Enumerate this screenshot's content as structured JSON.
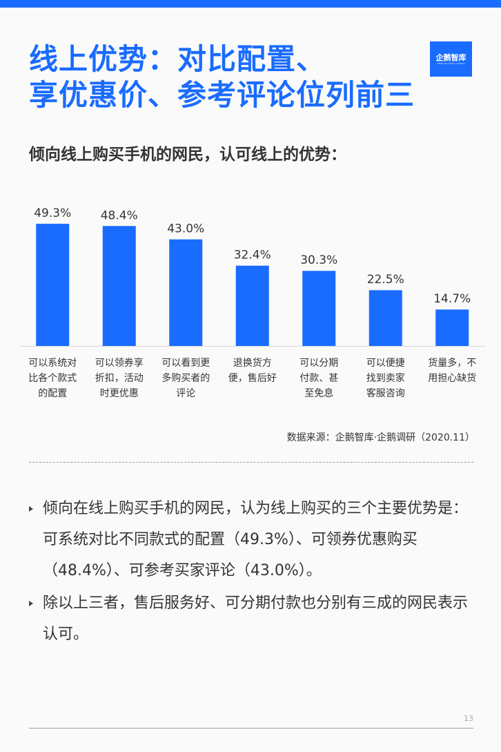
{
  "title_lines": [
    "线上优势：对比配置、",
    "享优惠价、参考评论位列前三"
  ],
  "logo": {
    "name": "企鹅智库",
    "tagline": "PENGUIN INTELLIGENCE"
  },
  "subtitle": "倾向线上购买手机的网民，认可线上的优势：",
  "chart_data": {
    "type": "bar",
    "title": "倾向线上购买手机的网民，认可线上的优势：",
    "categories": [
      [
        "可以系统对",
        "比各个款式",
        "的配置"
      ],
      [
        "可以领券享",
        "折扣，活动",
        "时更优惠"
      ],
      [
        "可以看到更",
        "多购买者的",
        "评论"
      ],
      [
        "退换货方",
        "便，售后好"
      ],
      [
        "可以分期",
        "付款、甚",
        "至免息"
      ],
      [
        "可以便捷",
        "找到卖家",
        "客服咨询"
      ],
      [
        "货量多，不",
        "用担心缺货"
      ]
    ],
    "values": [
      49.3,
      48.4,
      43.0,
      32.4,
      30.3,
      22.5,
      14.7
    ],
    "value_labels": [
      "49.3%",
      "48.4%",
      "43.0%",
      "32.4%",
      "30.3%",
      "22.5%",
      "14.7%"
    ],
    "ylim": [
      0,
      56
    ],
    "grid": false,
    "bar_color": "#1a6cff"
  },
  "source": "数据来源：企鹅智库·企鹅调研（2020.11）",
  "bullets": [
    "倾向在线上购买手机的网民，认为线上购买的三个主要优势是：可系统对比不同款式的配置（49.3%）、可领券优惠购买（48.4%）、可参考买家评论（43.0%）。",
    "除以上三者，售后服务好、可分期付款也分别有三成的网民表示认可。"
  ],
  "page_number": "13",
  "colors": {
    "accent": "#1a6cff",
    "text": "#333333"
  }
}
